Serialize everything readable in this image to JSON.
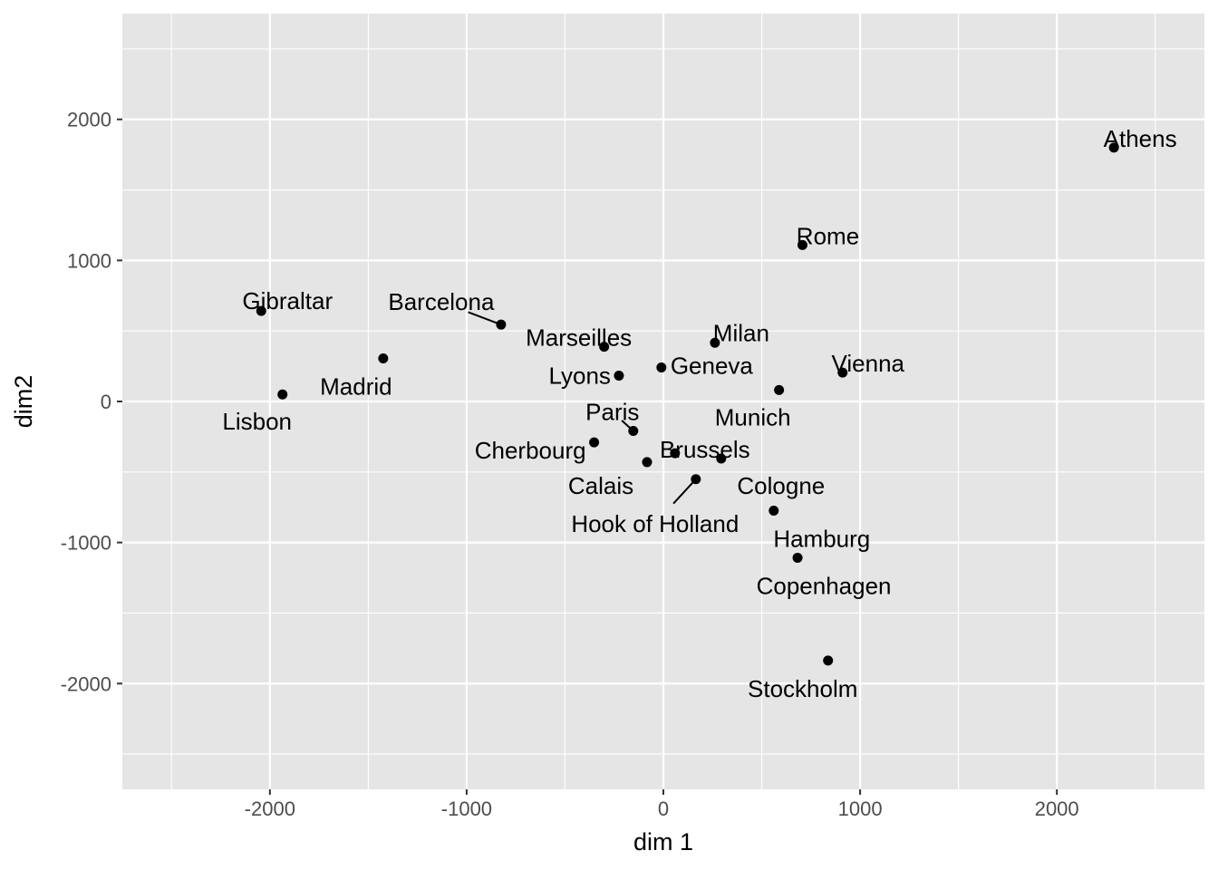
{
  "chart_data": {
    "type": "scatter",
    "title": "",
    "xlabel": "dim 1",
    "ylabel": "dim2",
    "xlim": [
      -2750,
      2750
    ],
    "ylim": [
      -2750,
      2750
    ],
    "x_ticks": [
      -2000,
      -1000,
      0,
      1000,
      2000
    ],
    "y_ticks": [
      -2000,
      -1000,
      0,
      1000,
      2000
    ],
    "x_tick_labels": [
      "-2000",
      "-1000",
      "0",
      "1000",
      "2000"
    ],
    "y_tick_labels": [
      "-2000",
      "-1000",
      "0",
      "1000",
      "2000"
    ],
    "grid": true,
    "panel_color": "#e5e5e5",
    "grid_color": "#ffffff",
    "point_color": "#000000",
    "points": [
      {
        "label": "Athens",
        "x": 2290,
        "y": 1800
      },
      {
        "label": "Barcelona",
        "x": -825,
        "y": 545
      },
      {
        "label": "Brussels",
        "x": 59,
        "y": -367
      },
      {
        "label": "Calais",
        "x": -83,
        "y": -430
      },
      {
        "label": "Cherbourg",
        "x": -352,
        "y": -290
      },
      {
        "label": "Cologne",
        "x": 294,
        "y": -405
      },
      {
        "label": "Copenhagen",
        "x": 682,
        "y": -1108
      },
      {
        "label": "Geneva",
        "x": -10,
        "y": 241
      },
      {
        "label": "Gibraltar",
        "x": -2044,
        "y": 642
      },
      {
        "label": "Hamburg",
        "x": 561,
        "y": -774
      },
      {
        "label": "Hook of Holland",
        "x": 165,
        "y": -551
      },
      {
        "label": "Lisbon",
        "x": -1936,
        "y": 50
      },
      {
        "label": "Lyons",
        "x": -226,
        "y": 183
      },
      {
        "label": "Madrid",
        "x": -1424,
        "y": 305
      },
      {
        "label": "Marseilles",
        "x": -301,
        "y": 388
      },
      {
        "label": "Milan",
        "x": 262,
        "y": 416
      },
      {
        "label": "Munich",
        "x": 588,
        "y": 81
      },
      {
        "label": "Paris",
        "x": -153,
        "y": -209
      },
      {
        "label": "Rome",
        "x": 707,
        "y": 1109
      },
      {
        "label": "Stockholm",
        "x": 837,
        "y": -1837
      },
      {
        "label": "Vienna",
        "x": 911,
        "y": 205
      }
    ]
  }
}
